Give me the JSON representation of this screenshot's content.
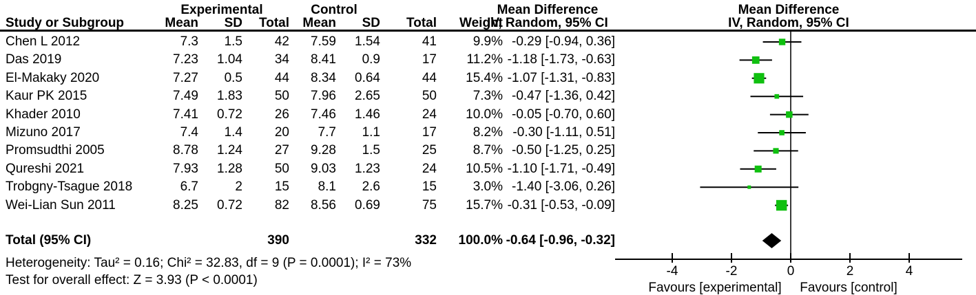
{
  "header": {
    "group_experimental": "Experimental",
    "group_control": "Control",
    "col_study": "Study or Subgroup",
    "col_mean": "Mean",
    "col_sd": "SD",
    "col_total": "Total",
    "col_weight": "Weight",
    "md_title": "Mean Difference",
    "md_subtitle": "IV, Random, 95% CI"
  },
  "footer": {
    "heterogeneity": "Heterogeneity: Tau² = 0.16; Chi² = 32.83, df = 9 (P = 0.0001); I² = 73%",
    "overall_effect": "Test for overall effect: Z = 3.93 (P < 0.0001)"
  },
  "colors": {
    "marker_green": "#0fc00f",
    "diamond_black": "#000000",
    "zero_line_gray": "#3a3a3a",
    "line_black": "#000000"
  },
  "chart_data": {
    "type": "scatter",
    "subtype": "forest-plot-mean-difference",
    "effect_measure": "Mean Difference",
    "model": "IV, Random, 95% CI",
    "studies": [
      {
        "name": "Chen L 2012",
        "exp_mean": "7.3",
        "exp_sd": "1.5",
        "exp_total": "42",
        "ctrl_mean": "7.59",
        "ctrl_sd": "1.54",
        "ctrl_total": "41",
        "weight": "9.9%",
        "ci_label": "-0.29 [-0.94, 0.36]",
        "md": -0.29,
        "lo": -0.94,
        "hi": 0.36
      },
      {
        "name": "Das 2019",
        "exp_mean": "7.23",
        "exp_sd": "1.04",
        "exp_total": "34",
        "ctrl_mean": "8.41",
        "ctrl_sd": "0.9",
        "ctrl_total": "17",
        "weight": "11.2%",
        "ci_label": "-1.18 [-1.73, -0.63]",
        "md": -1.18,
        "lo": -1.73,
        "hi": -0.63
      },
      {
        "name": "El-Makaky 2020",
        "exp_mean": "7.27",
        "exp_sd": "0.5",
        "exp_total": "44",
        "ctrl_mean": "8.34",
        "ctrl_sd": "0.64",
        "ctrl_total": "44",
        "weight": "15.4%",
        "ci_label": "-1.07 [-1.31, -0.83]",
        "md": -1.07,
        "lo": -1.31,
        "hi": -0.83
      },
      {
        "name": "Kaur PK 2015",
        "exp_mean": "7.49",
        "exp_sd": "1.83",
        "exp_total": "50",
        "ctrl_mean": "7.96",
        "ctrl_sd": "2.65",
        "ctrl_total": "50",
        "weight": "7.3%",
        "ci_label": "-0.47 [-1.36, 0.42]",
        "md": -0.47,
        "lo": -1.36,
        "hi": 0.42
      },
      {
        "name": "Khader 2010",
        "exp_mean": "7.41",
        "exp_sd": "0.72",
        "exp_total": "26",
        "ctrl_mean": "7.46",
        "ctrl_sd": "1.46",
        "ctrl_total": "24",
        "weight": "10.0%",
        "ci_label": "-0.05 [-0.70, 0.60]",
        "md": -0.05,
        "lo": -0.7,
        "hi": 0.6
      },
      {
        "name": "Mizuno 2017",
        "exp_mean": "7.4",
        "exp_sd": "1.4",
        "exp_total": "20",
        "ctrl_mean": "7.7",
        "ctrl_sd": "1.1",
        "ctrl_total": "17",
        "weight": "8.2%",
        "ci_label": "-0.30 [-1.11, 0.51]",
        "md": -0.3,
        "lo": -1.11,
        "hi": 0.51
      },
      {
        "name": "Promsudthi 2005",
        "exp_mean": "8.78",
        "exp_sd": "1.24",
        "exp_total": "27",
        "ctrl_mean": "9.28",
        "ctrl_sd": "1.5",
        "ctrl_total": "25",
        "weight": "8.7%",
        "ci_label": "-0.50 [-1.25, 0.25]",
        "md": -0.5,
        "lo": -1.25,
        "hi": 0.25
      },
      {
        "name": "Qureshi 2021",
        "exp_mean": "7.93",
        "exp_sd": "1.28",
        "exp_total": "50",
        "ctrl_mean": "9.03",
        "ctrl_sd": "1.23",
        "ctrl_total": "24",
        "weight": "10.5%",
        "ci_label": "-1.10 [-1.71, -0.49]",
        "md": -1.1,
        "lo": -1.71,
        "hi": -0.49
      },
      {
        "name": "Trobgny-Tsague 2018",
        "exp_mean": "6.7",
        "exp_sd": "2",
        "exp_total": "15",
        "ctrl_mean": "8.1",
        "ctrl_sd": "2.6",
        "ctrl_total": "15",
        "weight": "3.0%",
        "ci_label": "-1.40 [-3.06, 0.26]",
        "md": -1.4,
        "lo": -3.06,
        "hi": 0.26
      },
      {
        "name": "Wei-Lian Sun 2011",
        "exp_mean": "8.25",
        "exp_sd": "0.72",
        "exp_total": "82",
        "ctrl_mean": "8.56",
        "ctrl_sd": "0.69",
        "ctrl_total": "75",
        "weight": "15.7%",
        "ci_label": "-0.31 [-0.53, -0.09]",
        "md": -0.31,
        "lo": -0.53,
        "hi": -0.09
      }
    ],
    "total": {
      "label": "Total (95% CI)",
      "exp_total": "390",
      "ctrl_total": "332",
      "weight": "100.0%",
      "ci_label": "-0.64 [-0.96, -0.32]",
      "md": -0.64,
      "lo": -0.96,
      "hi": -0.32
    },
    "xlim": [
      -5.9,
      5.8
    ],
    "ticks": [
      -4,
      -2,
      0,
      2,
      4
    ],
    "tick_labels": [
      "-4",
      "-2",
      "0",
      "2",
      "4"
    ],
    "favours_left": "Favours [experimental]",
    "favours_right": "Favours [control]",
    "grid": false,
    "legend": false
  }
}
